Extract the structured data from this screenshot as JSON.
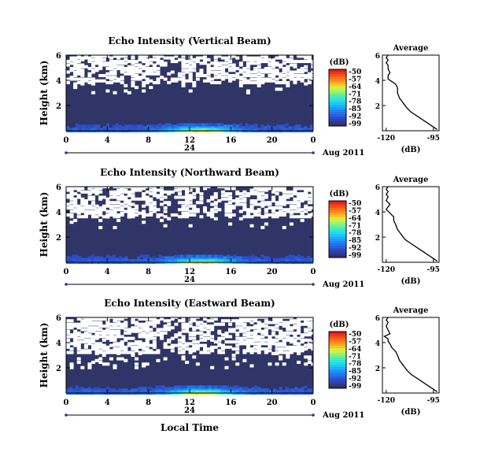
{
  "chart_data": [
    {
      "type": "heatmap",
      "title": "Echo Intensity (Vertical Beam)",
      "ylabel": "Height (km)",
      "y_ticks": [
        "6",
        "4",
        "2"
      ],
      "x_ticks": [
        "0",
        "4",
        "8",
        "12",
        "16",
        "20",
        "0"
      ],
      "xlim": [
        0,
        24
      ],
      "ylim": [
        0,
        6
      ],
      "day_label": "24",
      "date_label": "Aug 2011",
      "colorbar": {
        "unit": "(dB)",
        "ticks": [
          "-50",
          "-57",
          "-64",
          "-71",
          "-78",
          "-85",
          "-92",
          "-99"
        ]
      },
      "clear_air_bands": [
        {
          "ybot": 3.8,
          "ytop": 6.0,
          "gap_density": 0.55
        },
        {
          "ybot": 3.0,
          "ytop": 3.8,
          "gap_density": 0.08
        }
      ],
      "near_surface_max_dB": -80,
      "average_profile": {
        "title": "Average",
        "xlabel": "(dB)",
        "x_ticks": [
          "-120",
          "-95"
        ],
        "y_ticks": [
          "6",
          "4",
          "2"
        ],
        "xlim": [
          -122,
          -92
        ],
        "ylim": [
          0,
          6
        ],
        "x": [
          -93,
          -95,
          -98,
          -101,
          -104,
          -107,
          -109,
          -111,
          -113,
          -114,
          -114,
          -115,
          -117,
          -119,
          -119,
          -118,
          -119,
          -119,
          -120,
          -119,
          -120,
          -119
        ],
        "y": [
          0.1,
          0.3,
          0.6,
          0.9,
          1.2,
          1.5,
          1.8,
          2.2,
          2.6,
          3.0,
          3.4,
          3.7,
          3.9,
          4.1,
          4.4,
          4.6,
          4.9,
          5.2,
          5.4,
          5.6,
          5.8,
          6.0
        ]
      }
    },
    {
      "type": "heatmap",
      "title": "Echo Intensity (Northward Beam)",
      "ylabel": "Height (km)",
      "y_ticks": [
        "6",
        "4",
        "2"
      ],
      "x_ticks": [
        "0",
        "4",
        "8",
        "12",
        "16",
        "20",
        "0"
      ],
      "xlim": [
        0,
        24
      ],
      "ylim": [
        0,
        6
      ],
      "day_label": "24",
      "date_label": "Aug 2011",
      "colorbar": {
        "unit": "(dB)",
        "ticks": [
          "-50",
          "-57",
          "-64",
          "-71",
          "-78",
          "-85",
          "-92",
          "-99"
        ]
      },
      "clear_air_bands": [
        {
          "ybot": 3.6,
          "ytop": 6.0,
          "gap_density": 0.55
        },
        {
          "ybot": 2.6,
          "ytop": 3.6,
          "gap_density": 0.05
        }
      ],
      "near_surface_max_dB": -78,
      "average_profile": {
        "title": "Average",
        "xlabel": "(dB)",
        "x_ticks": [
          "-120",
          "-95"
        ],
        "y_ticks": [
          "6",
          "4",
          "2"
        ],
        "xlim": [
          -122,
          -92
        ],
        "ylim": [
          0,
          6
        ],
        "x": [
          -93,
          -95,
          -98,
          -101,
          -104,
          -107,
          -110,
          -112,
          -114,
          -115,
          -116,
          -116,
          -118,
          -120,
          -119,
          -118,
          -120,
          -119,
          -120,
          -119,
          -120,
          -119
        ],
        "y": [
          0.1,
          0.3,
          0.6,
          0.9,
          1.2,
          1.5,
          1.8,
          2.2,
          2.6,
          3.0,
          3.3,
          3.6,
          3.9,
          4.2,
          4.4,
          4.6,
          4.9,
          5.2,
          5.4,
          5.6,
          5.8,
          6.0
        ]
      }
    },
    {
      "type": "heatmap",
      "title": "Echo Intensity (Eastward Beam)",
      "ylabel": "Height (km)",
      "y_ticks": [
        "6",
        "4",
        "2"
      ],
      "x_ticks": [
        "0",
        "4",
        "8",
        "12",
        "16",
        "20",
        "0"
      ],
      "xlim": [
        0,
        24
      ],
      "ylim": [
        0,
        6
      ],
      "day_label": "24",
      "date_label": "Aug 2011",
      "xlabel": "Local Time",
      "colorbar": {
        "unit": "(dB)",
        "ticks": [
          "-50",
          "-57",
          "-64",
          "-71",
          "-78",
          "-85",
          "-92",
          "-99"
        ]
      },
      "clear_air_bands": [
        {
          "ybot": 3.2,
          "ytop": 6.0,
          "gap_density": 0.6
        },
        {
          "ybot": 2.0,
          "ytop": 3.2,
          "gap_density": 0.12
        }
      ],
      "near_surface_max_dB": -80,
      "average_profile": {
        "title": "Average",
        "xlabel": "(dB)",
        "x_ticks": [
          "-120",
          "-95"
        ],
        "y_ticks": [
          "6",
          "4",
          "2"
        ],
        "xlim": [
          -122,
          -92
        ],
        "ylim": [
          0,
          6
        ],
        "x": [
          -93,
          -95,
          -98,
          -101,
          -104,
          -107,
          -109,
          -111,
          -113,
          -114,
          -115,
          -117,
          -118,
          -119,
          -119,
          -121,
          -118,
          -119,
          -120,
          -119,
          -120,
          -119
        ],
        "y": [
          0.1,
          0.3,
          0.6,
          0.9,
          1.2,
          1.5,
          1.8,
          2.2,
          2.6,
          3.0,
          3.3,
          3.6,
          3.9,
          4.1,
          4.3,
          4.5,
          4.7,
          5.0,
          5.3,
          5.6,
          5.8,
          6.0
        ]
      }
    }
  ]
}
